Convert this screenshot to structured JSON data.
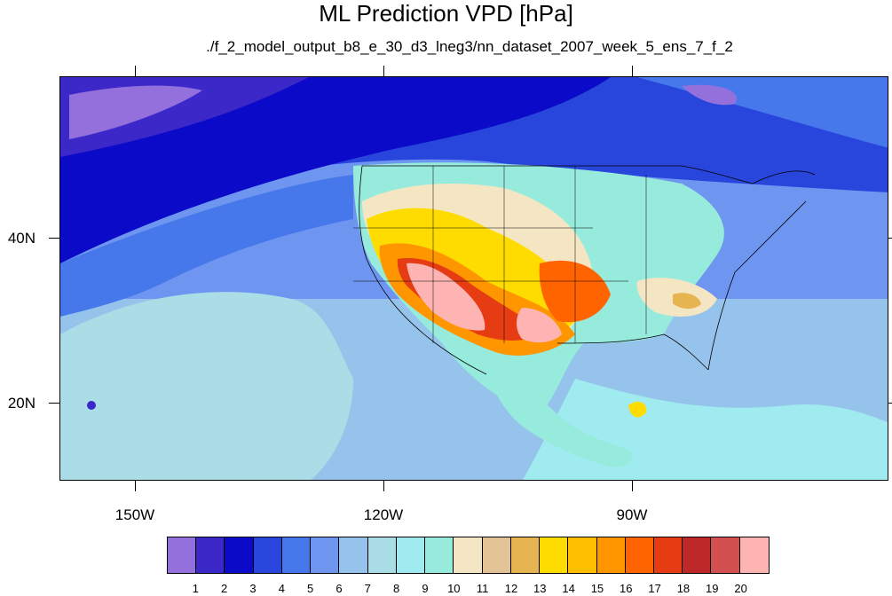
{
  "title": "ML Prediction VPD [hPa]",
  "subtitle": "./f_2_model_output_b8_e_30_d3_lneg3/nn_dataset_2007_week_5_ens_7_f_2",
  "axes": {
    "x_labels": [
      "150W",
      "120W",
      "90W"
    ],
    "y_labels": [
      "40N",
      "20N"
    ]
  },
  "colorbar": {
    "colors": [
      "#9370db",
      "#3c28c8",
      "#0a0ac8",
      "#2846dc",
      "#4678eb",
      "#6e96f0",
      "#96c3eb",
      "#aadde6",
      "#a0ebf0",
      "#96ebdc",
      "#f5e6c3",
      "#e1c396",
      "#e6b450",
      "#ffdc00",
      "#ffbe00",
      "#ff9600",
      "#ff6400",
      "#e63c14",
      "#be2828",
      "#d25050",
      "#ffb4b4"
    ],
    "labels": [
      "1",
      "2",
      "3",
      "4",
      "5",
      "6",
      "7",
      "8",
      "9",
      "10",
      "11",
      "12",
      "13",
      "14",
      "15",
      "16",
      "17",
      "18",
      "19",
      "20"
    ]
  }
}
